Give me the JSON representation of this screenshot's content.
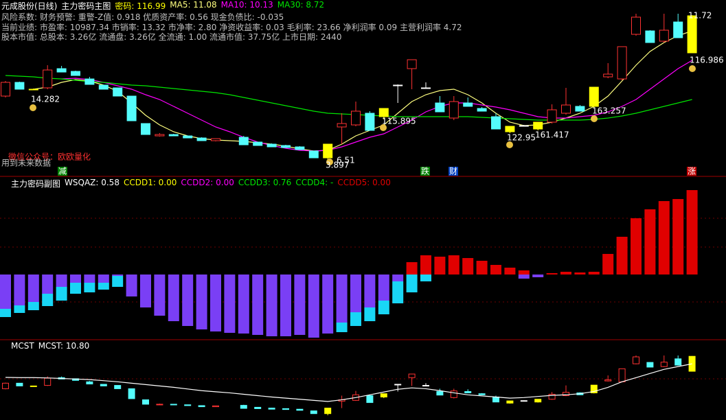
{
  "header": {
    "stock": "元成股份(日线)",
    "indicator": "主力密码主图",
    "value_label": "密码: 116.99",
    "info": [
      "风险系数: 财务预警: 重警-Z值: 0.918 优质资产率: 0.56 现金负债比: -0.035",
      "当前业绩: 市盈率: 10987.34 市销率: 13.32 市净率: 2.80 净资收益率: 0.03 毛利率: 23.66 净利润率 0.09 主营利润率 4.72",
      "股本市值: 总股本: 3.26亿 流通盘: 3.26亿 全流通: 1.00 流通市值: 37.75亿 上市日期: 2440"
    ],
    "notes": [
      "微信公众号：欧欧量化",
      "用到未来数据"
    ],
    "signals": [
      "减",
      "跌",
      "财",
      "涨"
    ]
  },
  "chart_data": [
    {
      "type": "candlestick",
      "ylim": [
        0,
        250
      ],
      "candles": [
        [
          110,
          132,
          108,
          130
        ],
        [
          130,
          131,
          120,
          120
        ],
        [
          120,
          121,
          119,
          120
        ],
        [
          122,
          155,
          120,
          148
        ],
        [
          150,
          154,
          145,
          145
        ],
        [
          146,
          147,
          140,
          140
        ],
        [
          135,
          138,
          127,
          127
        ],
        [
          126,
          126,
          120,
          120
        ],
        [
          122,
          122,
          110,
          110
        ],
        [
          110,
          110,
          74,
          74
        ],
        [
          70,
          70,
          54,
          54
        ],
        [
          52,
          56,
          51,
          54
        ],
        [
          54,
          55,
          52,
          52
        ],
        [
          52,
          52,
          49,
          49
        ],
        [
          49,
          50,
          45,
          45
        ],
        [
          45,
          48,
          44,
          48
        ],
        null,
        [
          50,
          52,
          39,
          39
        ],
        [
          43,
          43,
          38,
          38
        ],
        [
          40,
          41,
          36,
          36
        ],
        [
          38,
          39,
          35,
          35
        ],
        [
          36,
          37,
          32,
          32
        ],
        [
          30,
          30,
          20,
          20
        ],
        [
          20,
          40,
          14,
          40
        ],
        [
          65,
          85,
          40,
          70
        ],
        [
          68,
          102,
          66,
          88
        ],
        [
          85,
          88,
          60,
          60
        ],
        [
          80,
          92,
          76,
          92
        ],
        [
          126,
          127,
          100,
          126
        ],
        [
          150,
          163,
          120,
          163
        ],
        [
          122,
          130,
          121,
          122
        ],
        [
          100,
          110,
          87,
          87
        ],
        [
          78,
          110,
          75,
          102
        ],
        [
          100,
          108,
          95,
          95
        ],
        [
          92,
          94,
          88,
          88
        ],
        [
          80,
          85,
          62,
          62
        ],
        [
          58,
          66,
          56,
          66
        ],
        [
          67,
          68,
          66,
          67
        ],
        [
          62,
          72,
          60,
          72
        ],
        [
          72,
          98,
          70,
          90
        ],
        [
          85,
          122,
          83,
          97
        ],
        [
          95,
          97,
          88,
          88
        ],
        [
          95,
          123,
          93,
          123
        ],
        [
          138,
          158,
          136,
          142
        ],
        [
          135,
          182,
          133,
          182
        ],
        [
          200,
          230,
          198,
          225
        ],
        [
          205,
          206,
          188,
          188
        ],
        [
          190,
          230,
          188,
          206
        ],
        [
          218,
          230,
          195,
          195
        ],
        [
          173,
          228,
          173,
          227
        ]
      ],
      "colors": [
        "#ff3232",
        "#54fcfc",
        "#ffff00",
        "#ff3232",
        "#54fcfc",
        "#54fcfc",
        "#54fcfc",
        "#54fcfc",
        "#54fcfc",
        "#54fcfc",
        "#54fcfc",
        "#ff3232",
        "#54fcfc",
        "#54fcfc",
        "#54fcfc",
        "#ff3232",
        null,
        "#54fcfc",
        "#54fcfc",
        "#54fcfc",
        "#54fcfc",
        "#54fcfc",
        "#54fcfc",
        "#ffff00",
        "#ff3232",
        "#ff3232",
        "#54fcfc",
        "#ffff00",
        "#ffffff",
        "#ff3232",
        "#ffffff",
        "#54fcfc",
        "#ff3232",
        "#54fcfc",
        "#54fcfc",
        "#54fcfc",
        "#ffff00",
        "#ffffff",
        "#ffff00",
        "#ff3232",
        "#ff3232",
        "#54fcfc",
        "#ffff00",
        "#ff3232",
        "#ff3232",
        "#ff3232",
        "#54fcfc",
        "#ff3232",
        "#54fcfc",
        "#ffff00"
      ],
      "series": [
        {
          "name": "MA5: 11.08",
          "color": "#ffff80",
          "values": [
            null,
            null,
            120,
            123,
            130,
            134,
            132,
            126,
            117,
            100,
            82,
            68,
            58,
            52,
            48,
            46,
            45,
            44,
            42,
            40,
            37,
            33,
            30,
            31,
            40,
            52,
            60,
            68,
            85,
            102,
            112,
            118,
            120,
            112,
            100,
            85,
            72,
            67,
            68,
            72,
            78,
            85,
            95,
            110,
            132,
            155,
            175,
            188,
            198,
            205
          ]
        },
        {
          "name": "MA10: 10.13",
          "color": "#ff00ff",
          "values": [
            null,
            null,
            null,
            null,
            135,
            136,
            134,
            130,
            125,
            120,
            112,
            105,
            95,
            85,
            75,
            65,
            58,
            50,
            43,
            38,
            34,
            31,
            30,
            31,
            36,
            43,
            50,
            55,
            65,
            75,
            87,
            95,
            100,
            100,
            97,
            94,
            90,
            85,
            80,
            78,
            78,
            80,
            82,
            87,
            95,
            105,
            120,
            135,
            150,
            162
          ]
        },
        {
          "name": "MA30: 8.72",
          "color": "#00e600",
          "values": [
            140,
            139,
            138,
            136,
            135,
            133,
            131,
            130,
            128,
            126,
            125,
            123,
            121,
            119,
            117,
            115,
            112,
            108,
            104,
            100,
            96,
            92,
            88,
            85,
            84,
            83,
            82,
            81,
            80,
            80,
            80,
            80,
            80,
            80,
            79,
            78,
            77,
            76,
            75,
            75,
            75,
            75,
            76,
            78,
            81,
            85,
            90,
            95,
            100,
            105
          ]
        }
      ],
      "annotations": [
        "14.282",
        "116.986",
        "115.895",
        "163.257",
        "122.95",
        "161.417",
        "11.72",
        "6.51",
        "3.897"
      ]
    },
    {
      "type": "bar",
      "title": "主力密码副图",
      "ylim": [
        -95,
        142
      ],
      "legend": [
        {
          "text": "WSQAZ: 0.58",
          "color": "#ffffff"
        },
        {
          "text": "CCDD1: 0.00",
          "color": "#ffff00"
        },
        {
          "text": "CCDD2: 0.00",
          "color": "#ff00ff"
        },
        {
          "text": "CCDD3: 0.76",
          "color": "#00e600"
        },
        {
          "text": "CCDD4: -",
          "color": "#00e600"
        },
        {
          "text": "CCDD5: 0.00",
          "color": "#e00000"
        }
      ],
      "series": [
        {
          "color": "#7a3ff5",
          "values": [
            -50,
            -45,
            -40,
            -28,
            -18,
            -12,
            -12,
            -12,
            -2,
            -32,
            -48,
            -60,
            -68,
            -75,
            -80,
            -83,
            -85,
            -86,
            -88,
            -90,
            -90,
            -88,
            -92,
            -86,
            -70,
            -55,
            -48,
            -38,
            -10,
            0,
            0,
            0,
            0,
            0,
            0,
            0,
            0,
            -6,
            -4,
            0,
            0,
            0,
            0,
            0,
            0,
            0,
            0,
            0,
            0,
            0
          ]
        },
        {
          "color": "#19d6f5",
          "values": [
            -12,
            -11,
            -12,
            -18,
            -20,
            -16,
            -14,
            -10,
            -16,
            0,
            0,
            0,
            0,
            0,
            0,
            0,
            0,
            0,
            0,
            0,
            0,
            0,
            0,
            0,
            -14,
            -20,
            -20,
            -20,
            -32,
            -26,
            -10,
            0,
            0,
            0,
            0,
            0,
            0,
            0,
            0,
            0,
            0,
            0,
            0,
            0,
            0,
            0,
            0,
            0,
            0,
            0
          ]
        },
        {
          "color": "#e00000",
          "values": [
            0,
            0,
            0,
            0,
            0,
            0,
            0,
            0,
            0,
            0,
            0,
            0,
            0,
            0,
            0,
            0,
            0,
            0,
            0,
            0,
            0,
            0,
            0,
            0,
            0,
            0,
            0,
            0,
            0,
            18,
            28,
            26,
            28,
            24,
            20,
            14,
            10,
            6,
            0,
            2,
            4,
            3,
            4,
            30,
            55,
            82,
            95,
            107,
            110,
            123
          ]
        }
      ]
    },
    {
      "type": "line",
      "title": "MCST",
      "ylim": [
        -3,
        287
      ],
      "series": [
        {
          "name": "MCST: 10.80",
          "color": "#ffffff",
          "values": [
            151,
            150,
            150,
            149,
            147,
            145,
            143,
            139,
            135,
            130,
            125,
            120,
            115,
            109,
            103,
            99,
            95,
            90,
            85,
            80,
            76,
            72,
            68,
            64,
            70,
            78,
            88,
            98,
            108,
            113,
            110,
            103,
            95,
            88,
            84,
            80,
            76,
            78,
            82,
            86,
            88,
            92,
            100,
            115,
            135,
            150,
            165,
            180,
            190,
            200
          ]
        }
      ]
    }
  ]
}
